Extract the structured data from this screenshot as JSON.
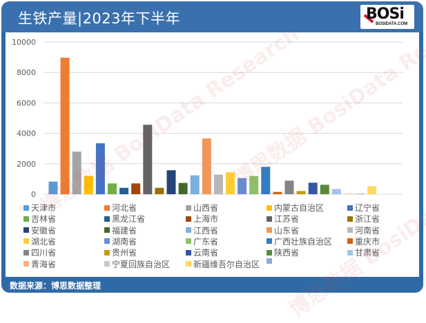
{
  "header": {
    "title": "生铁产量|2023年下半年",
    "logo_main": "BOSi",
    "logo_sub": "BOSIDATA.COM"
  },
  "footer": {
    "source": "数据来源：博思数据整理"
  },
  "watermark": "博思数据 BosiData Research",
  "colors": {
    "frame": "#2e6aa6",
    "header": "#3a70ad",
    "gridline": "#d9d9d9"
  },
  "chart_data": {
    "type": "bar",
    "title": "生铁产量|2023年下半年",
    "xlabel": "",
    "ylabel": "",
    "ylim": [
      0,
      10000
    ],
    "yticks": [
      0,
      2000,
      4000,
      6000,
      8000,
      10000
    ],
    "grid": true,
    "legend_position": "bottom",
    "categories": [
      "天津市",
      "河北省",
      "山西省",
      "内蒙古自治区",
      "辽宁省",
      "吉林省",
      "黑龙江省",
      "上海市",
      "江苏省",
      "浙江省",
      "安徽省",
      "福建省",
      "江西省",
      "山东省",
      "河南省",
      "湖北省",
      "湖南省",
      "广东省",
      "广西壮族自治区",
      "重庆市",
      "四川省",
      "贵州省",
      "云南省",
      "陕西省",
      "甘肃省",
      "青海省",
      "宁夏回族自治区",
      "新疆维吾尔自治区",
      ""
    ],
    "values": [
      830,
      8970,
      2800,
      1195,
      3345,
      710,
      420,
      710,
      4560,
      420,
      1575,
      740,
      1240,
      3665,
      1285,
      1440,
      1060,
      1195,
      1800,
      150,
      890,
      210,
      755,
      620,
      345,
      30,
      60,
      530,
      0
    ],
    "series_colors": [
      "#5b9bd5",
      "#ed7d31",
      "#a5a5a5",
      "#ffc000",
      "#4472c4",
      "#70ad47",
      "#255e91",
      "#9e480e",
      "#636363",
      "#997300",
      "#264478",
      "#43682b",
      "#7cafdd",
      "#f1975a",
      "#b7b7b7",
      "#ffcd33",
      "#698ed0",
      "#8cc168",
      "#327dc2",
      "#d26012",
      "#848484",
      "#cc9a00",
      "#335aa1",
      "#5a8a39",
      "#a2c4e7",
      "#f4b183",
      "#c9c9c9",
      "#ffd966",
      "#8faadc"
    ]
  }
}
